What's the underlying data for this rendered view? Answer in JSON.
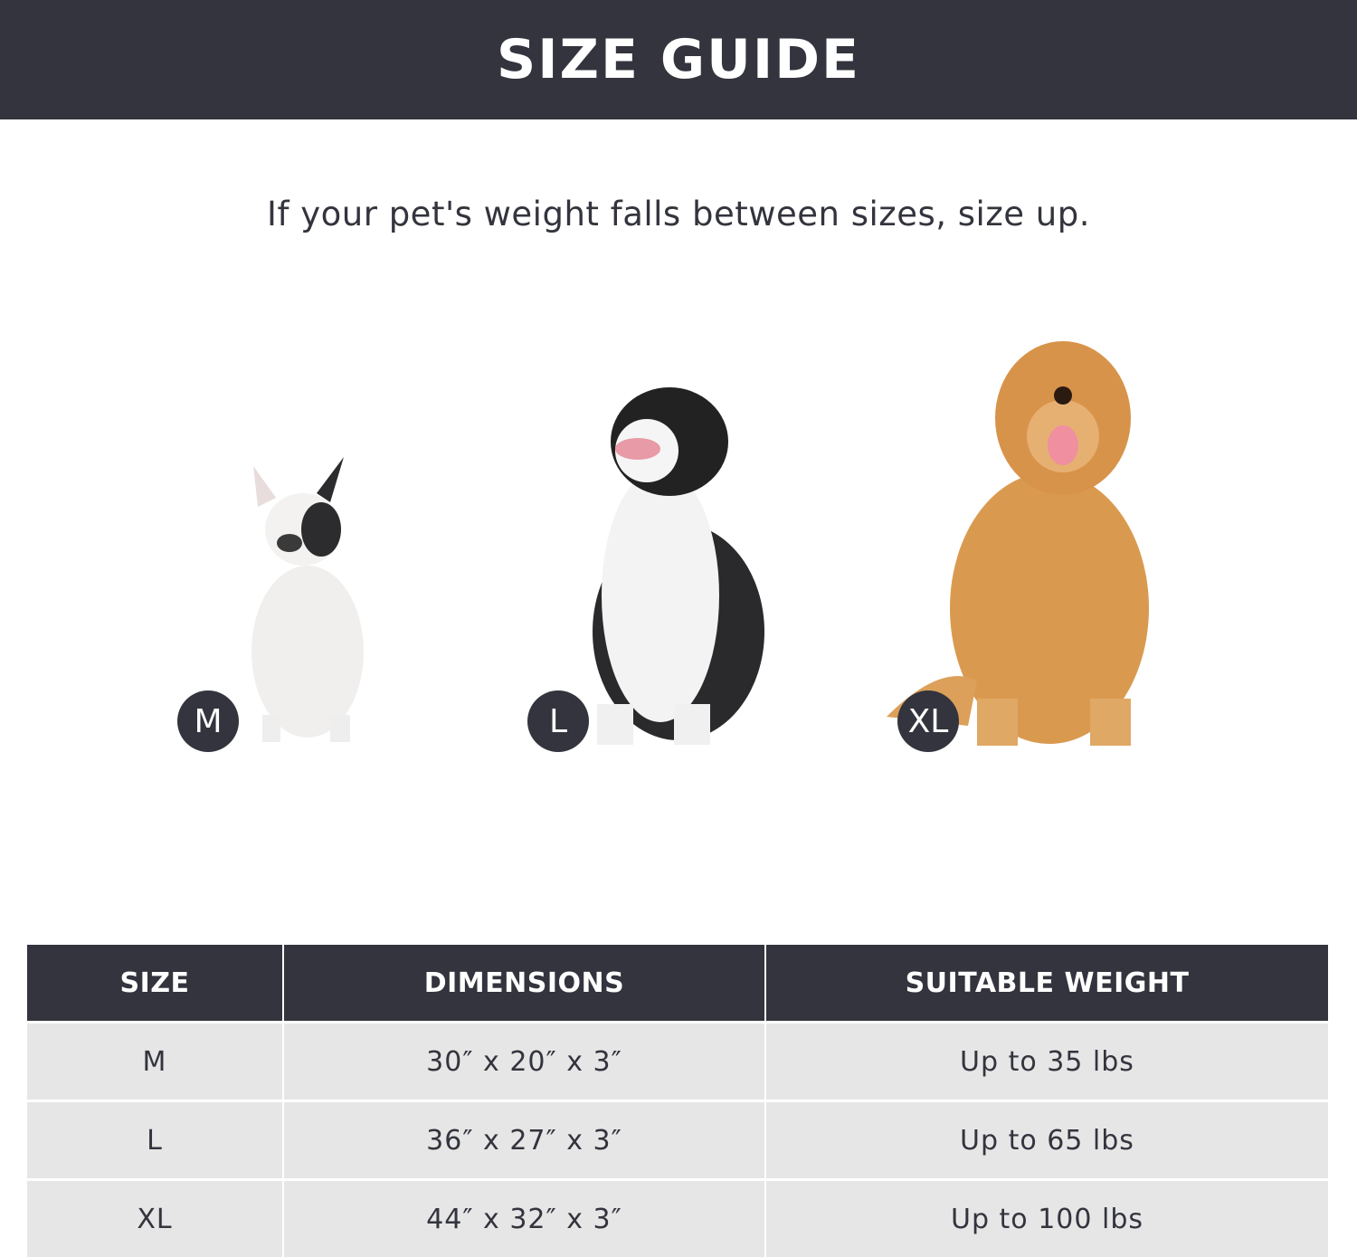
{
  "header": {
    "title": "SIZE GUIDE"
  },
  "subtitle": "If your pet's weight falls between sizes, size up.",
  "dogs": [
    {
      "badge": "M",
      "breed_icon": "french-bulldog-photo"
    },
    {
      "badge": "L",
      "breed_icon": "border-collie-photo"
    },
    {
      "badge": "XL",
      "breed_icon": "golden-retriever-photo"
    }
  ],
  "table": {
    "headers": [
      "SIZE",
      "DIMENSIONS",
      "SUITABLE WEIGHT"
    ],
    "rows": [
      [
        "M",
        "30″ x 20″ x 3″",
        "Up to 35 lbs"
      ],
      [
        "L",
        "36″ x 27″ x 3″",
        "Up to 65 lbs"
      ],
      [
        "XL",
        "44″ x 32″ x 3″",
        "Up to 100 lbs"
      ]
    ]
  },
  "colors": {
    "dark": "#33343d",
    "row_bg": "#e6e6e6",
    "white": "#ffffff"
  }
}
